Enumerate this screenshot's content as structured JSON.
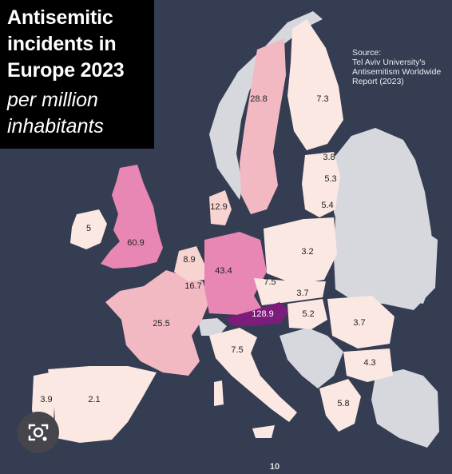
{
  "title": "Antisemitic incidents in Europe 2023",
  "subtitle": "per million inhabitants",
  "source": "Source:\nTel Aviv University's\nAntisemitism Worldwide\nReport (2023)",
  "page_number": "10",
  "colors": {
    "ocean": "#353d52",
    "no_data": "#d6d8de",
    "lowest": "#fbe8e3",
    "low": "#f7d4cf",
    "mid": "#f2b9c3",
    "high": "#e887b3",
    "highest": "#7c1c7b"
  },
  "regions": [
    {
      "name": "Austria",
      "value": "128.9"
    },
    {
      "name": "United Kingdom",
      "value": "60.9"
    },
    {
      "name": "Germany",
      "value": "43.4"
    },
    {
      "name": "Sweden",
      "value": "28.8"
    },
    {
      "name": "France",
      "value": "25.5"
    },
    {
      "name": "Belgium",
      "value": "16.7"
    },
    {
      "name": "Denmark",
      "value": "12.9"
    },
    {
      "name": "Netherlands",
      "value": "8.9"
    },
    {
      "name": "Czechia",
      "value": "7.5"
    },
    {
      "name": "Italy",
      "value": "7.5"
    },
    {
      "name": "Finland",
      "value": "7.3"
    },
    {
      "name": "Greece",
      "value": "5.8"
    },
    {
      "name": "Latvia",
      "value": "5.3"
    },
    {
      "name": "Lithuania",
      "value": "5.4"
    },
    {
      "name": "Hungary",
      "value": "5.2"
    },
    {
      "name": "Ireland",
      "value": "5"
    },
    {
      "name": "Bulgaria",
      "value": "4.3"
    },
    {
      "name": "Spain",
      "value": "2.1"
    },
    {
      "name": "Portugal",
      "value": "3.9"
    },
    {
      "name": "Estonia",
      "value": "3.8"
    },
    {
      "name": "Slovakia",
      "value": "3.7"
    },
    {
      "name": "Romania",
      "value": "3.7"
    },
    {
      "name": "Poland",
      "value": "3.2"
    }
  ],
  "lens_icon": "camera-search-icon"
}
